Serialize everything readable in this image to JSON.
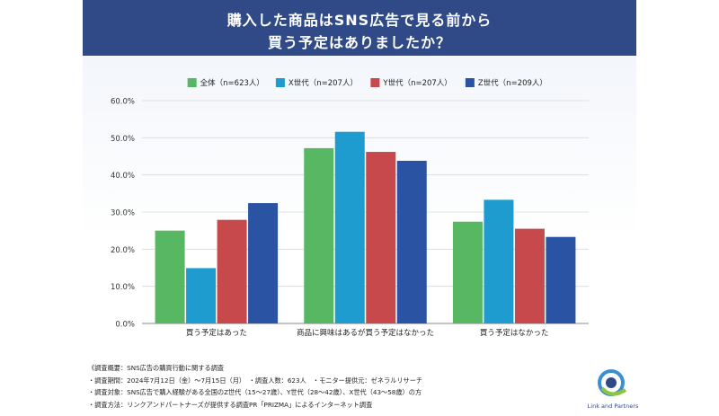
{
  "header": {
    "title_line1": "購入した商品はSNS広告で見る前から",
    "title_line2": "買う予定はありましたか？"
  },
  "chart_data": {
    "type": "bar",
    "categories": [
      "買う予定はあった",
      "商品に興味はあるが買う予定はなかった",
      "買う予定はなかった"
    ],
    "series": [
      {
        "name": "全体（n=623人）",
        "color": "#57b763",
        "values": [
          25.0,
          47.2,
          27.4
        ]
      },
      {
        "name": "X世代（n=207人）",
        "color": "#1f9ccf",
        "values": [
          14.9,
          51.6,
          33.3
        ]
      },
      {
        "name": "Y世代（n=207人）",
        "color": "#c8494b",
        "values": [
          27.9,
          46.2,
          25.5
        ]
      },
      {
        "name": "Z世代（n=209人）",
        "color": "#2a53a4",
        "values": [
          32.4,
          43.8,
          23.3
        ]
      }
    ],
    "ylim": [
      0,
      60
    ],
    "yticks": [
      "0.0%",
      "10.0%",
      "20.0%",
      "30.0%",
      "40.0%",
      "50.0%",
      "60.0%"
    ],
    "ytick_values": [
      0,
      10,
      20,
      30,
      40,
      50,
      60
    ],
    "grid": true,
    "legend_position": "top"
  },
  "notes": [
    "《調査概要：SNS広告の購買行動に関する調査",
    "・調査期間：2024年7月12日（金）〜7月15日（月）　・調査人数：623人　・モニター提供元：ゼネラルリサーチ",
    "・調査対象：SNS広告で購入経験がある全国のZ世代（15〜27歳）、Y世代（28〜42歳）、X世代（43〜58歳）の方",
    "・調査方法：リンクアンドパートナーズが提供する調査PR「PRIZMA」によるインターネット調査"
  ],
  "logo": {
    "text": "Link and Partners",
    "color": "#2f4a87"
  }
}
